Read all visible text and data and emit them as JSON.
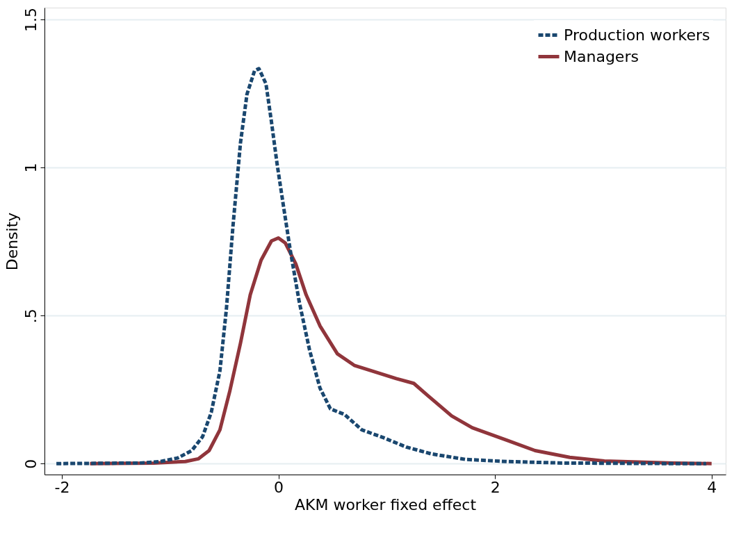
{
  "chart_data": {
    "type": "line",
    "xlabel": "AKM worker fixed effect",
    "ylabel": "Density",
    "xlim": [
      -2.16,
      4.13
    ],
    "ylim": [
      -0.037,
      1.54
    ],
    "xticks": [
      -2,
      0,
      2,
      4
    ],
    "yticks": [
      0,
      {
        "value": 0.5,
        "label": ".5"
      },
      1,
      1.5
    ],
    "grid": "y",
    "legend": "top right",
    "series": [
      {
        "name": "Production workers",
        "color": "#1a476f",
        "line_style": "dashed",
        "x": [
          -2.05,
          -1.28,
          -1.09,
          -0.93,
          -0.8,
          -0.7,
          -0.62,
          -0.54,
          -0.48,
          -0.42,
          -0.35,
          -0.29,
          -0.22,
          -0.18,
          -0.115,
          -0.064,
          -0.013,
          0.045,
          0.109,
          0.192,
          0.288,
          0.384,
          0.48,
          0.61,
          0.77,
          0.96,
          1.18,
          1.41,
          1.73,
          2.11,
          2.62,
          3.65,
          3.95
        ],
        "values": [
          0,
          0.002,
          0.007,
          0.019,
          0.044,
          0.091,
          0.173,
          0.313,
          0.523,
          0.8,
          1.084,
          1.248,
          1.327,
          1.334,
          1.283,
          1.154,
          1.014,
          0.874,
          0.722,
          0.547,
          0.383,
          0.255,
          0.185,
          0.166,
          0.114,
          0.089,
          0.056,
          0.033,
          0.014,
          0.007,
          0.002,
          0,
          0
        ]
      },
      {
        "name": "Managers",
        "color": "#90353b",
        "line_style": "solid",
        "x": [
          -1.74,
          -1.15,
          -0.86,
          -0.74,
          -0.64,
          -0.54,
          -0.45,
          -0.35,
          -0.26,
          -0.16,
          -0.064,
          0,
          0.064,
          0.16,
          0.256,
          0.384,
          0.544,
          0.7,
          0.864,
          1.088,
          1.25,
          1.376,
          1.6,
          1.79,
          2.11,
          2.37,
          2.69,
          3.01,
          3.65,
          4.0
        ],
        "values": [
          0,
          0.002,
          0.007,
          0.016,
          0.044,
          0.114,
          0.243,
          0.407,
          0.57,
          0.687,
          0.752,
          0.762,
          0.745,
          0.675,
          0.57,
          0.465,
          0.371,
          0.332,
          0.313,
          0.287,
          0.271,
          0.231,
          0.161,
          0.121,
          0.079,
          0.044,
          0.021,
          0.009,
          0.002,
          0
        ]
      }
    ]
  }
}
